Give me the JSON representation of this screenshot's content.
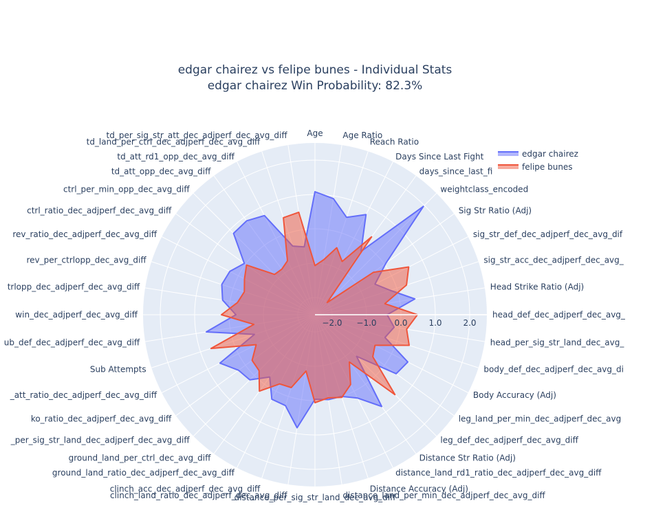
{
  "title": {
    "line1": "edgar chairez vs felipe bunes - Individual Stats",
    "line2": "edgar chairez Win Probability: 82.3%"
  },
  "legend": {
    "items": [
      {
        "label": "edgar chairez",
        "color": "#636efa"
      },
      {
        "label": "felipe bunes",
        "color": "#ef553b"
      }
    ]
  },
  "colors": {
    "polar_bg": "#e5ecf6",
    "grid": "#ffffff",
    "text": "#2a3f5f"
  },
  "chart_data": {
    "type": "radar",
    "title": "edgar chairez vs felipe bunes - Individual Stats\nedgar chairez Win Probability: 82.3%",
    "radial_range": [
      -2.5,
      2.5
    ],
    "radial_ticks": [
      -2.0,
      -1.0,
      0.0,
      1.0,
      2.0
    ],
    "radial_tick_labels": [
      "−2.0",
      "−1.0",
      "0.0",
      "1.0",
      "2.0"
    ],
    "legend_position": "top-right",
    "categories": [
      "Age",
      "Age Ratio",
      "Reach Ratio",
      "Days Since Last Fight",
      "days_since_last_fi",
      "weightclass_encoded",
      "Sig Str Ratio (Adj)",
      "sig_str_def_dec_adjperf_dec_avg_dif",
      "sig_str_acc_dec_adjperf_dec_avg_",
      "Head Strike Ratio (Adj)",
      "head_def_dec_adjperf_dec_avg_",
      "head_per_sig_str_land_dec_avg_",
      "body_def_dec_adjperf_dec_avg_di",
      "Body Accuracy (Adj)",
      "leg_land_per_min_dec_adjperf_dec_avg",
      "leg_def_dec_adjperf_dec_avg_diff",
      "Distance Str Ratio (Adj)",
      "distance_land_rd1_ratio_dec_adjperf_dec_avg_diff",
      "Distance Accuracy (Adj)",
      "distance_land_per_min_dec_adjperf_dec_avg_diff",
      "distance_per_sig_str_land_dec_avg_diff",
      "clinch_land_ratio_dec_adjperf_dec_avg_diff",
      "clinch_acc_dec_adjperf_dec_avg_diff",
      "ground_land_ratio_dec_adjperf_dec_avg_diff",
      "ground_land_per_ctrl_dec_avg_diff",
      "_per_sig_str_land_dec_adjperf_dec_avg_diff",
      "ko_ratio_dec_adjperf_dec_avg_diff",
      "_att_ratio_dec_adjperf_dec_avg_diff",
      "Sub Attempts",
      "ub_def_dec_adjperf_dec_avg_diff",
      "win_dec_adjperf_dec_avg_diff",
      "trlopp_dec_adjperf_dec_avg_diff",
      "rev_per_ctrlopp_dec_avg_diff",
      "rev_ratio_dec_adjperf_dec_avg_diff",
      "ctrl_ratio_dec_adjperf_dec_avg_diff",
      "ctrl_per_min_opp_dec_avg_diff",
      "td_att_opp_dec_avg_diff",
      "td_att_rd1_opp_dec_avg_diff",
      "td_land_per_ctrl_dec_adjperf_dec_avg_diff",
      "td_per_sig_str_att_dec_adjperf_dec_avg_diff"
    ],
    "series": [
      {
        "name": "edgar chairez",
        "color": "#636efa",
        "values": [
          1.08,
          0.92,
          0.48,
          0.77,
          -0.22,
          1.96,
          0.05,
          -0.54,
          -0.2,
          0.44,
          -0.4,
          -0.17,
          -0.36,
          0.53,
          0.42,
          -0.79,
          0.8,
          0.22,
          0.0,
          0.0,
          -0.04,
          0.83,
          0.28,
          0.26,
          -0.26,
          0.18,
          0.25,
          0.6,
          -0.65,
          0.7,
          -0.2,
          0.22,
          0.35,
          0.28,
          0.04,
          0.85,
          0.88,
          0.74,
          -0.4,
          -0.5
        ]
      },
      {
        "name": "felipe bunes",
        "color": "#ef553b",
        "values": [
          -1.07,
          -0.88,
          -0.45,
          -0.76,
          0.3,
          -2.0,
          -0.4,
          0.56,
          0.3,
          -0.44,
          0.48,
          0.2,
          0.38,
          -0.54,
          -0.42,
          0.79,
          -0.8,
          -0.22,
          0.03,
          -0.05,
          0.06,
          -0.84,
          -0.27,
          -0.24,
          0.25,
          -0.2,
          -0.24,
          -0.58,
          0.68,
          -0.7,
          0.22,
          -0.22,
          -0.34,
          -0.2,
          -0.04,
          -0.84,
          -0.86,
          -0.74,
          0.47,
          0.52
        ]
      }
    ]
  }
}
